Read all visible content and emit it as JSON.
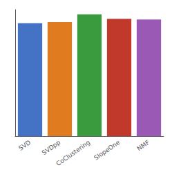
{
  "chart_data": {
    "type": "bar",
    "categories": [
      "SVD",
      "SVDpp",
      "CoClustering",
      "SlopeOne",
      "NMF"
    ],
    "values": [
      0.934,
      0.942,
      1.006,
      0.969,
      0.963
    ],
    "colors": [
      "#4472c4",
      "#e07b20",
      "#3a9b3e",
      "#c0392b",
      "#9b59b6"
    ],
    "ylim": [
      0.0,
      1.045
    ],
    "grid": false,
    "tick_labels": "x"
  }
}
